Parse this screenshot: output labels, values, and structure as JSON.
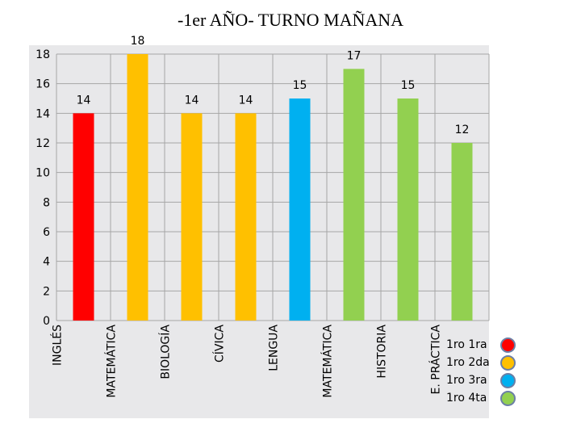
{
  "chart_data": {
    "type": "bar",
    "title": "-1er AÑO- TURNO MAÑANA",
    "categories": [
      "INGLÉS",
      "MATEMÁTICA",
      "BIOLOGÍA",
      "CÍVICA",
      "LENGUA",
      "MATEMÁTICA",
      "HISTORIA",
      "E. PRÁCTICA"
    ],
    "values": [
      14,
      18,
      14,
      14,
      15,
      17,
      15,
      12
    ],
    "series_index": [
      0,
      1,
      1,
      1,
      2,
      3,
      3,
      3
    ],
    "ylim": [
      0,
      18
    ],
    "yticks": [
      0,
      2,
      4,
      6,
      8,
      10,
      12,
      14,
      16,
      18
    ],
    "grid": true,
    "legend": {
      "placement": "bottom-right",
      "entries": [
        {
          "label": "1ro 1ra",
          "color": "#ff0000"
        },
        {
          "label": "1ro 2da",
          "color": "#ffc000"
        },
        {
          "label": "1ro 3ra",
          "color": "#00b0f0"
        },
        {
          "label": "1ro 4ta",
          "color": "#92d050"
        }
      ]
    }
  }
}
